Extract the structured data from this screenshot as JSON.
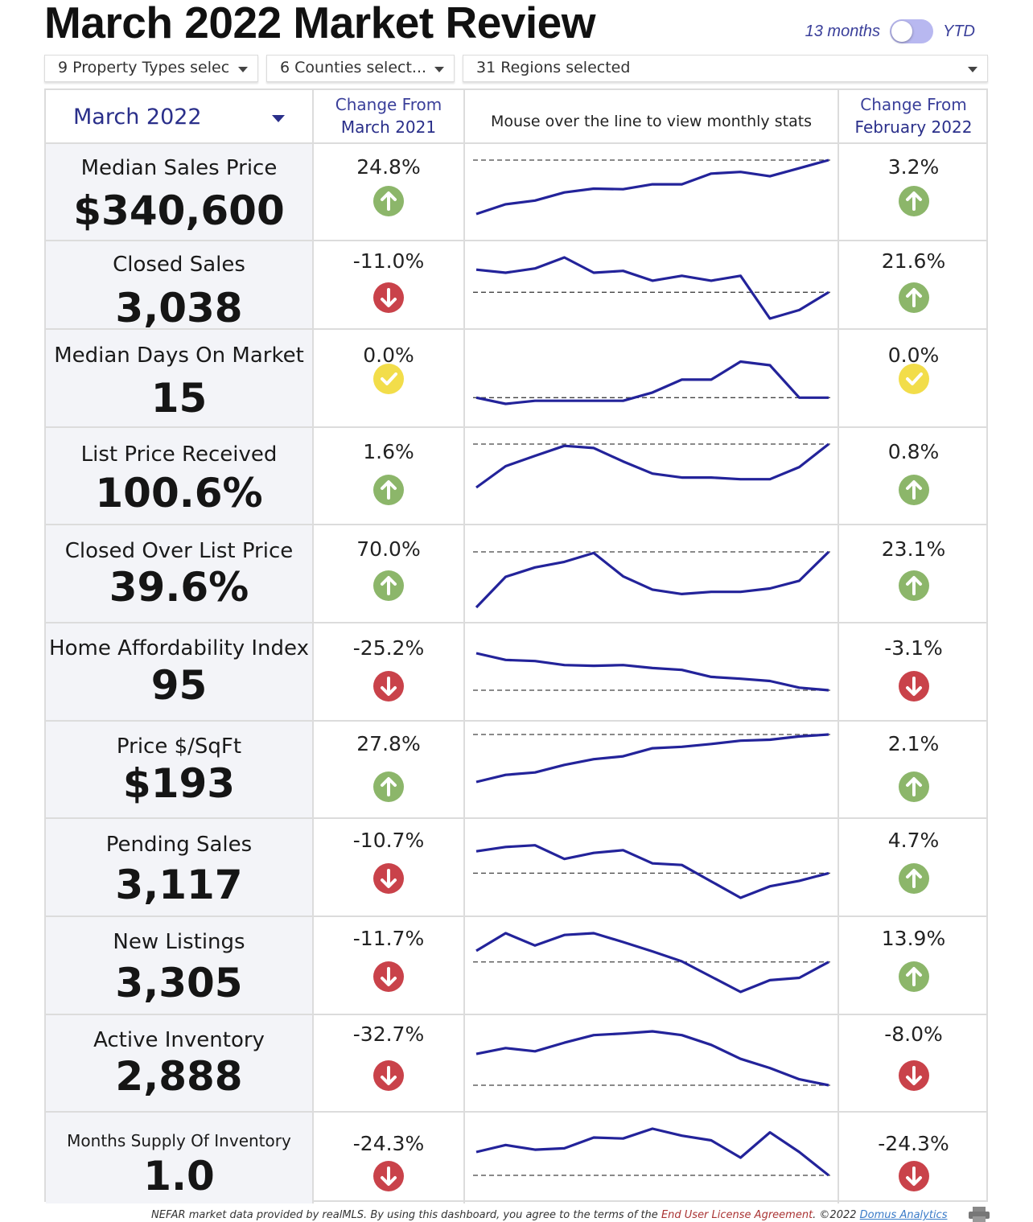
{
  "title": "March 2022 Market Review",
  "toggle": {
    "left_label": "13 months",
    "right_label": "YTD"
  },
  "filters": [
    {
      "label": "9 Property Types selec"
    },
    {
      "label": "6 Counties select..."
    },
    {
      "label": "31 Regions selected"
    }
  ],
  "header": {
    "month": "March 2022",
    "change_from_label": "Change From",
    "compare_year": "March 2021",
    "spark_hint": "Mouse over the line to view monthly stats",
    "compare_month": "February 2022"
  },
  "colors": {
    "up": "#8cb66a",
    "down": "#c9424a",
    "same": "#f2dd4a",
    "line": "#23239a",
    "accent": "#2a2f8a"
  },
  "metrics": [
    {
      "label": "Median Sales Price",
      "value": "$340,600",
      "yoy": "24.8%",
      "yoy_dir": "up",
      "mom": "3.2%",
      "mom_dir": "up",
      "trend": [
        0.0,
        0.18,
        0.25,
        0.4,
        0.47,
        0.46,
        0.55,
        0.55,
        0.75,
        0.78,
        0.7,
        0.85,
        1.0
      ],
      "baseline": 1.0
    },
    {
      "label": "Closed Sales",
      "value": "3,038",
      "yoy": "-11.0%",
      "yoy_dir": "down",
      "mom": "21.6%",
      "mom_dir": "up",
      "trend": [
        0.8,
        0.75,
        0.82,
        1.0,
        0.75,
        0.78,
        0.62,
        0.7,
        0.62,
        0.7,
        0.0,
        0.14,
        0.43
      ],
      "baseline": 0.43
    },
    {
      "label": "Median Days On Market",
      "value": "15",
      "yoy": "0.0%",
      "yoy_dir": "same",
      "mom": "0.0%",
      "mom_dir": "same",
      "trend": [
        0.12,
        0.0,
        0.06,
        0.06,
        0.06,
        0.06,
        0.22,
        0.47,
        0.47,
        0.82,
        0.75,
        0.12,
        0.12
      ],
      "baseline": 0.12
    },
    {
      "label": "List Price Received",
      "value": "100.6%",
      "yoy": "1.6%",
      "yoy_dir": "up",
      "mom": "0.8%",
      "mom_dir": "up",
      "trend": [
        0.0,
        0.49,
        0.73,
        0.96,
        0.91,
        0.6,
        0.32,
        0.23,
        0.23,
        0.19,
        0.19,
        0.47,
        1.0
      ],
      "baseline": 1.0
    },
    {
      "label": "Closed Over List Price",
      "value": "39.6%",
      "yoy": "70.0%",
      "yoy_dir": "up",
      "mom": "23.1%",
      "mom_dir": "up",
      "trend": [
        0.0,
        0.55,
        0.72,
        0.82,
        0.98,
        0.56,
        0.32,
        0.24,
        0.28,
        0.28,
        0.34,
        0.48,
        1.0
      ],
      "baseline": 1.0
    },
    {
      "label": "Home Affordability Index",
      "value": "95",
      "yoy": "-25.2%",
      "yoy_dir": "down",
      "mom": "-3.1%",
      "mom_dir": "down",
      "trend": [
        1.0,
        0.82,
        0.79,
        0.68,
        0.66,
        0.68,
        0.6,
        0.55,
        0.36,
        0.31,
        0.25,
        0.07,
        0.0
      ],
      "baseline": 0.0
    },
    {
      "label": "Price $/SqFt",
      "value": "$193",
      "yoy": "27.8%",
      "yoy_dir": "up",
      "mom": "2.1%",
      "mom_dir": "up",
      "trend": [
        0.0,
        0.15,
        0.2,
        0.36,
        0.48,
        0.54,
        0.71,
        0.74,
        0.8,
        0.87,
        0.89,
        0.96,
        1.0
      ],
      "baseline": 1.0
    },
    {
      "label": "Pending Sales",
      "value": "3,117",
      "yoy": "-10.7%",
      "yoy_dir": "down",
      "mom": "4.7%",
      "mom_dir": "up",
      "trend": [
        0.85,
        0.93,
        0.96,
        0.71,
        0.82,
        0.87,
        0.63,
        0.6,
        0.3,
        0.0,
        0.21,
        0.31,
        0.45
      ],
      "baseline": 0.45
    },
    {
      "label": "New Listings",
      "value": "3,305",
      "yoy": "-11.7%",
      "yoy_dir": "down",
      "mom": "13.9%",
      "mom_dir": "up",
      "trend": [
        0.7,
        1.0,
        0.79,
        0.97,
        1.0,
        0.85,
        0.69,
        0.52,
        0.26,
        0.0,
        0.2,
        0.24,
        0.51
      ],
      "baseline": 0.51
    },
    {
      "label": "Active Inventory",
      "value": "2,888",
      "yoy": "-32.7%",
      "yoy_dir": "down",
      "mom": "-8.0%",
      "mom_dir": "down",
      "trend": [
        0.58,
        0.69,
        0.63,
        0.79,
        0.93,
        0.96,
        1.0,
        0.93,
        0.75,
        0.49,
        0.32,
        0.11,
        0.0
      ],
      "baseline": 0.0
    },
    {
      "label": "Months Supply Of Inventory",
      "value": "1.0",
      "yoy": "-24.3%",
      "yoy_dir": "down",
      "mom": "-24.3%",
      "mom_dir": "down",
      "trend": [
        0.5,
        0.65,
        0.55,
        0.58,
        0.81,
        0.79,
        1.0,
        0.85,
        0.75,
        0.38,
        0.92,
        0.5,
        0.0
      ],
      "baseline": 0.0
    }
  ],
  "footer": {
    "text1": "NEFAR market data provided by realMLS.  By using this dashboard, you agree to the terms of the",
    "eula": "End User License Agreement",
    "text2": ".  ©2022",
    "brand": "Domus Analytics"
  }
}
